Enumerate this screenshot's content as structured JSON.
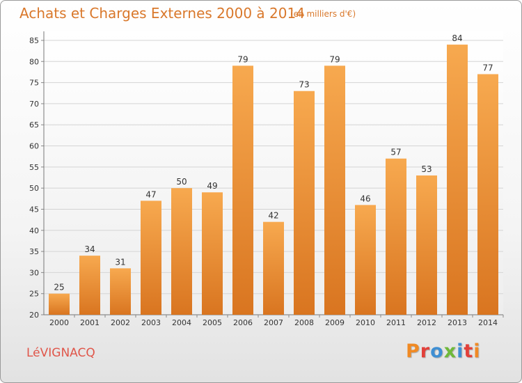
{
  "header": {
    "title": "Achats et Charges Externes 2000 à 2014",
    "subtitle": "(en milliers d'€)"
  },
  "footer": {
    "commune": "LéVIGNACQ",
    "logo_text": "Proxiti",
    "logo_colors": [
      "#f08a24",
      "#e2403a",
      "#3f8fd3",
      "#6fb93a",
      "#3f8fd3",
      "#e2403a",
      "#f08a24"
    ]
  },
  "colors": {
    "bar_light": "#f7a94f",
    "bar_dark": "#d97520",
    "axis_text": "#333333",
    "grid": "#d4d4d4",
    "title": "#d9782b",
    "commune": "#e0564a"
  },
  "chart_data": {
    "type": "bar",
    "categories": [
      "2000",
      "2001",
      "2002",
      "2003",
      "2004",
      "2005",
      "2006",
      "2007",
      "2008",
      "2009",
      "2010",
      "2011",
      "2012",
      "2013",
      "2014"
    ],
    "values": [
      25,
      34,
      31,
      47,
      50,
      49,
      79,
      42,
      73,
      79,
      46,
      57,
      53,
      84,
      77
    ],
    "ylim": [
      20,
      85
    ],
    "yticks": [
      20,
      25,
      30,
      35,
      40,
      45,
      50,
      55,
      60,
      65,
      70,
      75,
      80,
      85
    ],
    "grid": true,
    "data_labels": true
  }
}
